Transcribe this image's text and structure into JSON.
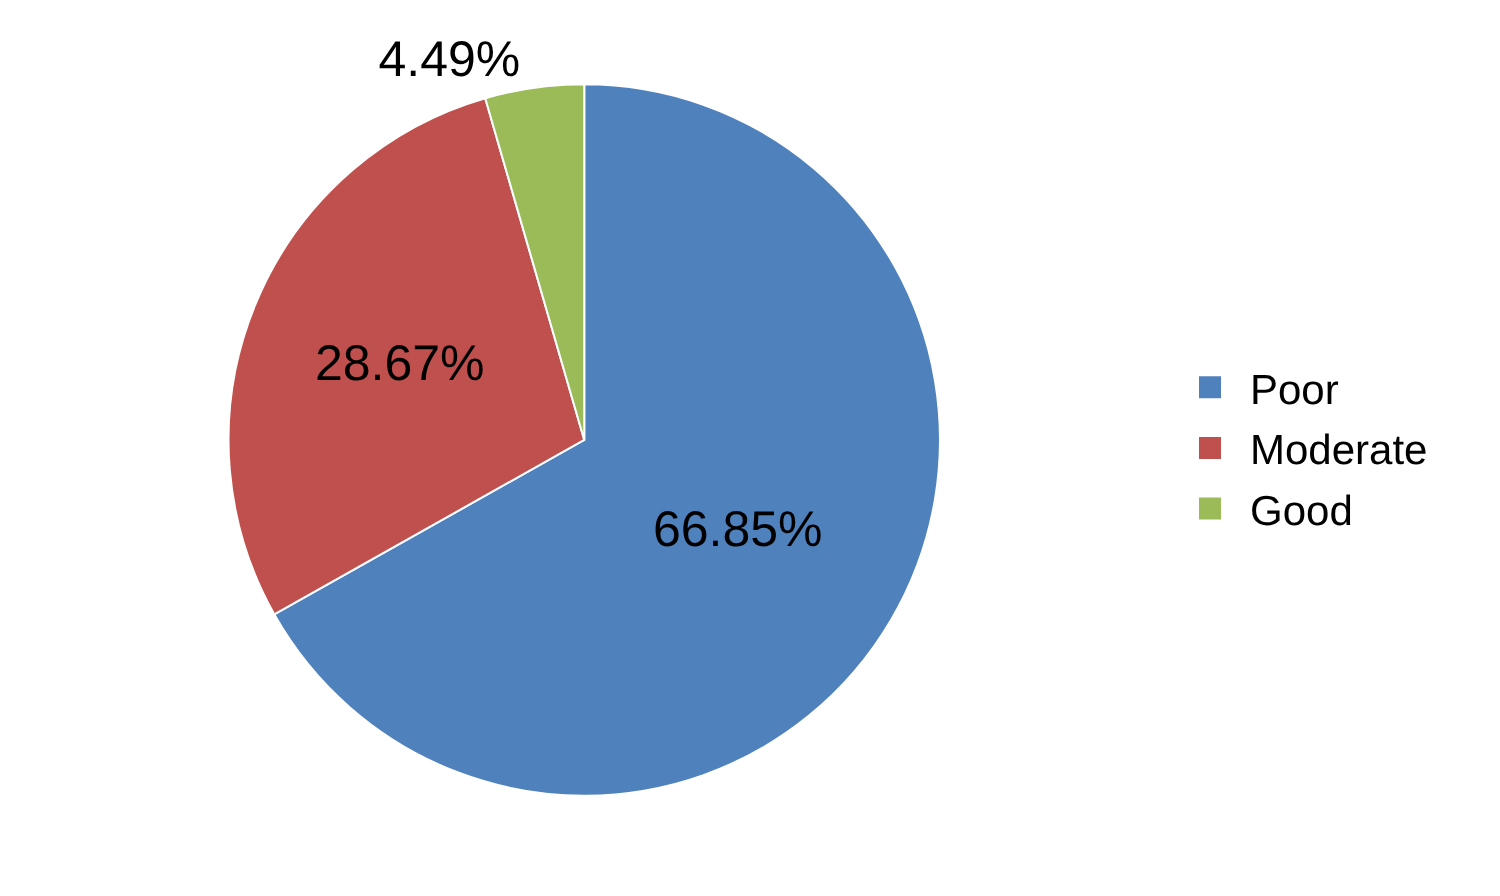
{
  "chart_data": {
    "type": "pie",
    "categories": [
      "Poor",
      "Moderate",
      "Good"
    ],
    "values": [
      66.85,
      28.67,
      4.49
    ],
    "value_labels": [
      "66.85%",
      "28.67%",
      "4.49%"
    ],
    "colors": [
      "#4f81bd",
      "#c0504d",
      "#9bbb59"
    ],
    "legend": "right"
  }
}
